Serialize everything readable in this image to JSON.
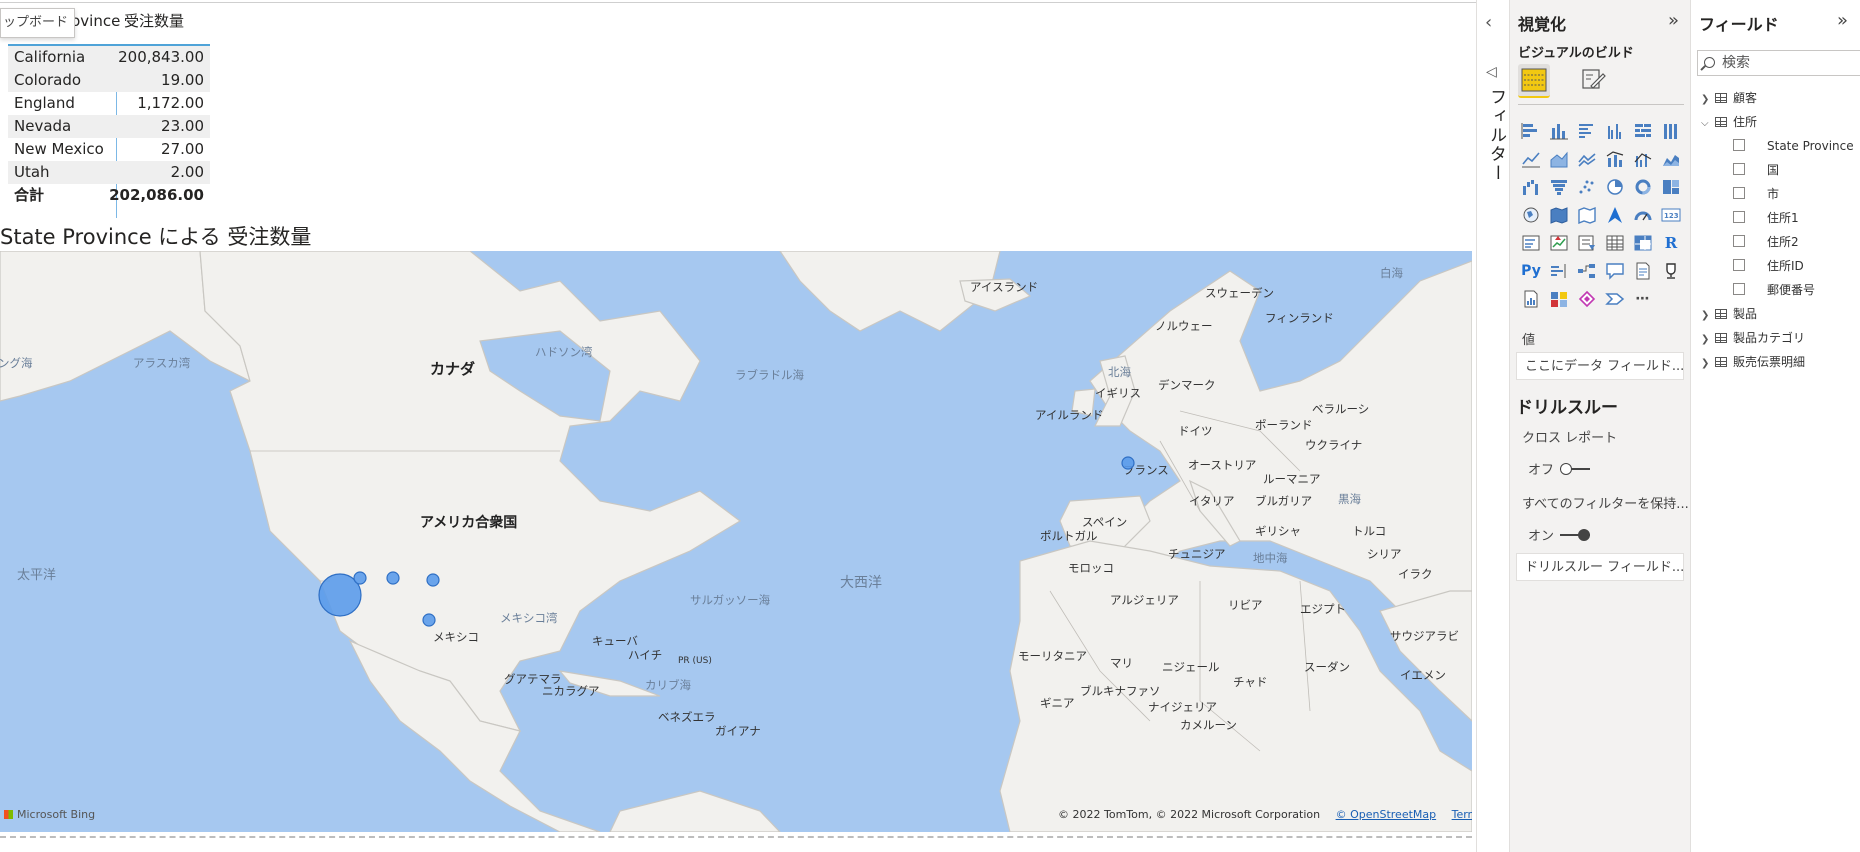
{
  "tooltip": "ップボード",
  "table": {
    "col1_header": "State Province",
    "col2_header": "受注数量",
    "rows": [
      {
        "name": "California",
        "value": "200,843.00"
      },
      {
        "name": "Colorado",
        "value": "19.00"
      },
      {
        "name": "England",
        "value": "1,172.00"
      },
      {
        "name": "Nevada",
        "value": "23.00"
      },
      {
        "name": "New Mexico",
        "value": "27.00"
      },
      {
        "name": "Utah",
        "value": "2.00"
      }
    ],
    "total_label": "合計",
    "total_value": "202,086.00"
  },
  "map": {
    "title": "State Province による 受注数量",
    "labels": [
      "アイスランド",
      "スウェーデン",
      "フィンランド",
      "ノルウェー",
      "白海",
      "アラスカ湾",
      "ング海",
      "ハドソン湾",
      "カナダ",
      "ラブラドル海",
      "北海",
      "デンマーク",
      "イギリス",
      "アイルランド",
      "ベラルーシ",
      "ポーランド",
      "ドイツ",
      "ウクライナ",
      "フランス",
      "オーストリア",
      "ルーマニア",
      "イタリア",
      "ブルガリア",
      "黒海",
      "スペイン",
      "ポルトガル",
      "ギリシャ",
      "トルコ",
      "アメリカ合衆国",
      "太平洋",
      "大西洋",
      "サルガッソー海",
      "メキシコ湾",
      "メキシコ",
      "キューバ",
      "ハイチ",
      "PR (US)",
      "カリブ海",
      "グアテマラ",
      "ニカラグア",
      "ベネズエラ",
      "ガイアナ",
      "モロッコ",
      "チュニジア",
      "地中海",
      "シリア",
      "イラク",
      "アルジェリア",
      "リビア",
      "エジプト",
      "サウジアラビ",
      "モーリタニア",
      "マリ",
      "ニジェール",
      "チャド",
      "スーダン",
      "イエメン",
      "ブルキナファソ",
      "ナイジェリア",
      "カメルーン",
      "ギニア"
    ],
    "logo": "Microsoft Bing",
    "attribution": "© 2022 TomTom, © 2022 Microsoft Corporation",
    "osm_link": "© OpenStreetMap",
    "terms_link": "Terms"
  },
  "filter_strip": {
    "label": "フィルター"
  },
  "viz_pane": {
    "title": "視覚化",
    "subtitle": "ビジュアルのビルド",
    "values_label": "値",
    "values_well": "ここにデータ フィールド...",
    "drill_title": "ドリルスルー",
    "cross_report": "クロス レポート",
    "off_label": "オフ",
    "keep_filters": "すべてのフィルターを保持...",
    "on_label": "オン",
    "drill_well": "ドリルスルー フィールド..."
  },
  "fields_pane": {
    "title": "フィールド",
    "search_placeholder": "検索",
    "tables": [
      {
        "name": "顧客",
        "expanded": false
      },
      {
        "name": "住所",
        "expanded": true,
        "fields": [
          "State Province",
          "国",
          "市",
          "住所1",
          "住所2",
          "住所ID",
          "郵便番号"
        ]
      },
      {
        "name": "製品",
        "expanded": false
      },
      {
        "name": "製品カテゴリ",
        "expanded": false
      },
      {
        "name": "販売伝票明細",
        "expanded": false
      }
    ]
  },
  "colors": {
    "bubble_fill": "#5b9bea",
    "bubble_stroke": "#2f6fc4",
    "ocean": "#a6c8f0",
    "land": "#f2f1ee",
    "accent_yellow": "#f2c811"
  }
}
